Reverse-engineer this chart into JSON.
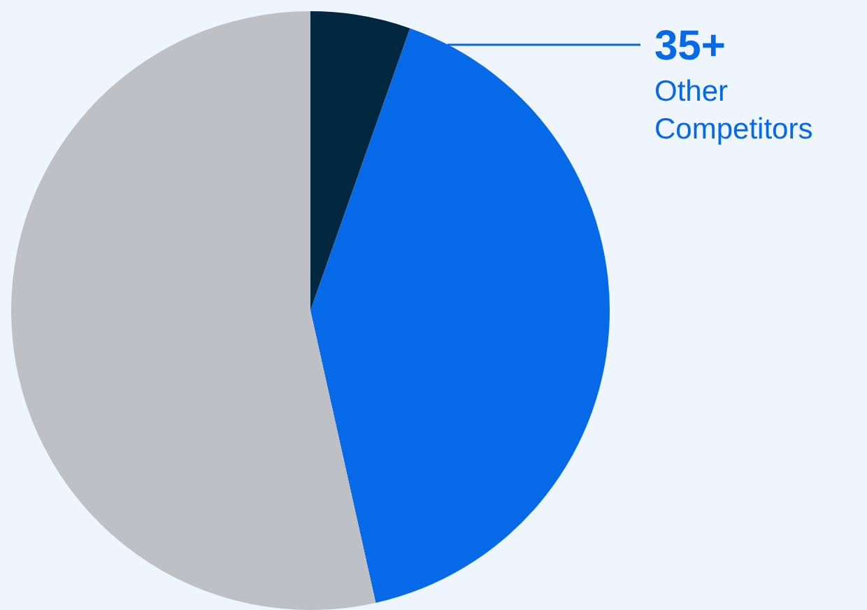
{
  "chart_data": {
    "type": "pie",
    "categories": [
      null,
      "Other Competitors",
      null
    ],
    "values": [
      5.4,
      41.1,
      53.5
    ],
    "colors": [
      "#012840",
      "#0569e8",
      "#bdc1c5"
    ],
    "annotations": [
      "35+"
    ]
  }
}
